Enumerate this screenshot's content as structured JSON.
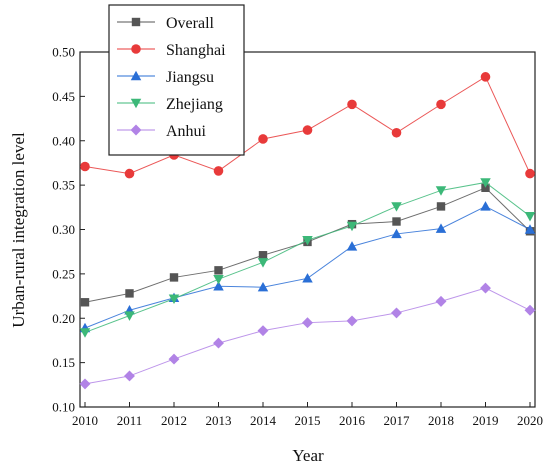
{
  "chart_data": {
    "type": "line",
    "title": "",
    "xlabel": "Year",
    "ylabel": "Urban-rural integration level",
    "x": [
      "2010",
      "2011",
      "2012",
      "2013",
      "2014",
      "2015",
      "2016",
      "2017",
      "2018",
      "2019",
      "2020"
    ],
    "ylim": [
      0.1,
      0.5
    ],
    "yticks": [
      "0.10",
      "0.15",
      "0.20",
      "0.25",
      "0.30",
      "0.35",
      "0.40",
      "0.45",
      "0.50"
    ],
    "grid": false,
    "legend_position": "top-left",
    "series": [
      {
        "name": "Overall",
        "color": "#555555",
        "marker": "square",
        "values": [
          0.218,
          0.228,
          0.246,
          0.254,
          0.271,
          0.286,
          0.306,
          0.309,
          0.326,
          0.347,
          0.298
        ]
      },
      {
        "name": "Shanghai",
        "color": "#e83a3a",
        "marker": "circle",
        "values": [
          0.371,
          0.363,
          0.384,
          0.366,
          0.402,
          0.412,
          0.441,
          0.409,
          0.441,
          0.472,
          0.363
        ]
      },
      {
        "name": "Jiangsu",
        "color": "#2a6fd6",
        "marker": "triangle-up",
        "values": [
          0.189,
          0.209,
          0.223,
          0.236,
          0.235,
          0.245,
          0.281,
          0.295,
          0.301,
          0.326,
          0.3
        ]
      },
      {
        "name": "Zhejiang",
        "color": "#3cb878",
        "marker": "triangle-down",
        "values": [
          0.184,
          0.203,
          0.222,
          0.244,
          0.263,
          0.288,
          0.304,
          0.326,
          0.344,
          0.353,
          0.315
        ]
      },
      {
        "name": "Anhui",
        "color": "#b183e6",
        "marker": "diamond",
        "values": [
          0.126,
          0.135,
          0.154,
          0.172,
          0.186,
          0.195,
          0.197,
          0.206,
          0.219,
          0.234,
          0.209
        ]
      }
    ]
  }
}
